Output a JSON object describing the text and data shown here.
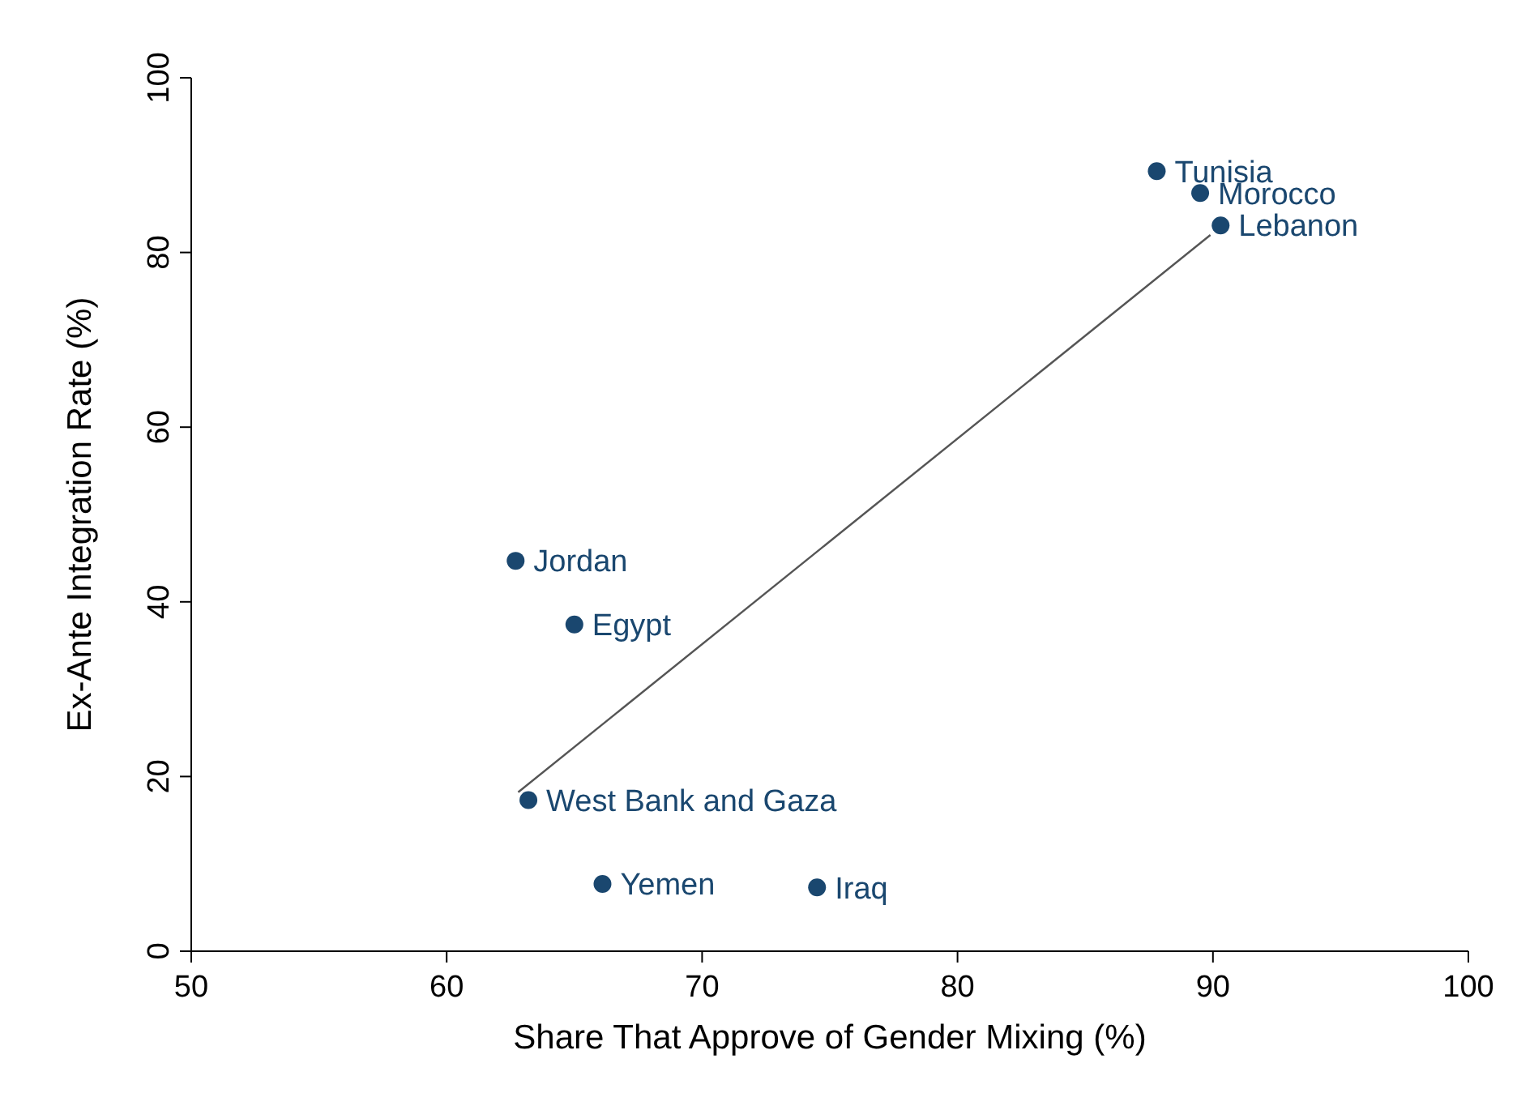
{
  "chart_data": {
    "type": "scatter",
    "xlabel": "Share That Approve of Gender Mixing (%)",
    "ylabel": "Ex-Ante Integration Rate (%)",
    "xlim": [
      50,
      100
    ],
    "xticks": [
      50,
      60,
      70,
      80,
      90,
      100
    ],
    "ylim": [
      0,
      100
    ],
    "yticks": [
      0,
      20,
      40,
      60,
      80,
      100
    ],
    "grid": false,
    "marker": "circle",
    "series": [
      {
        "color": "#1a476f",
        "x": [
          87.8,
          89.5,
          90.3,
          62.7,
          65.0,
          63.2,
          66.1,
          74.5
        ],
        "values": [
          89.3,
          86.8,
          83.1,
          44.7,
          37.4,
          17.3,
          7.7,
          7.3
        ],
        "value_labels": [
          "Tunisia",
          "Morocco",
          "Lebanon",
          "Jordan",
          "Egypt",
          "West Bank and Gaza",
          "Yemen",
          "Iraq"
        ]
      },
      {
        "type": "line",
        "color": "#555555",
        "marker": "none",
        "line_style": "solid",
        "x": [
          62.8,
          89.9
        ],
        "values": [
          18.2,
          82.0
        ]
      }
    ]
  }
}
